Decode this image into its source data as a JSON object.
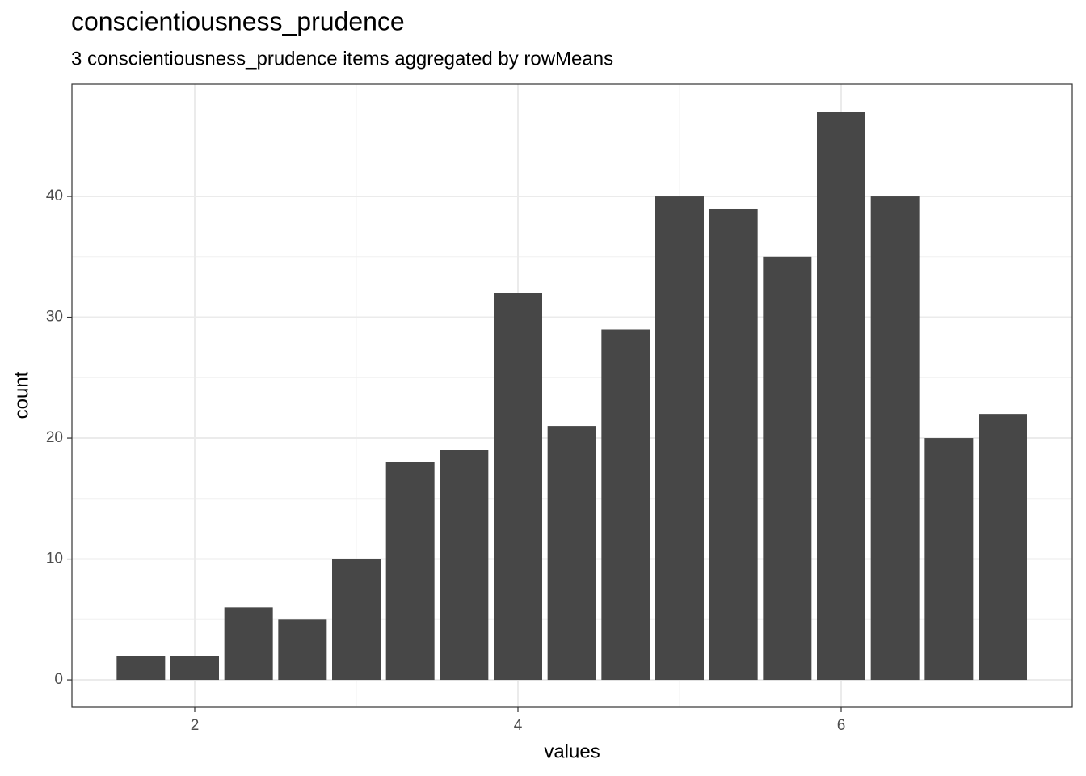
{
  "chart_data": {
    "type": "bar",
    "title": "conscientiousness_prudence",
    "subtitle": "3 conscientiousness_prudence items aggregated by rowMeans",
    "x_label": "values",
    "y_label": "count",
    "x": [
      1.6667,
      2,
      2.3333,
      2.6667,
      3,
      3.3333,
      3.6667,
      4,
      4.3333,
      4.6667,
      5,
      5.3333,
      5.6667,
      6,
      6.3333,
      6.6667,
      7
    ],
    "values": [
      2,
      2,
      6,
      5,
      10,
      18,
      19,
      32,
      21,
      29,
      40,
      39,
      35,
      47,
      40,
      20,
      22
    ],
    "color": "#474747",
    "xlim": [
      1.24,
      7.43
    ],
    "xticks": [
      2,
      4,
      6
    ],
    "ylim": [
      -2.27,
      49.3
    ],
    "yticks": [
      0,
      10,
      20,
      30,
      40
    ],
    "grid": true
  }
}
